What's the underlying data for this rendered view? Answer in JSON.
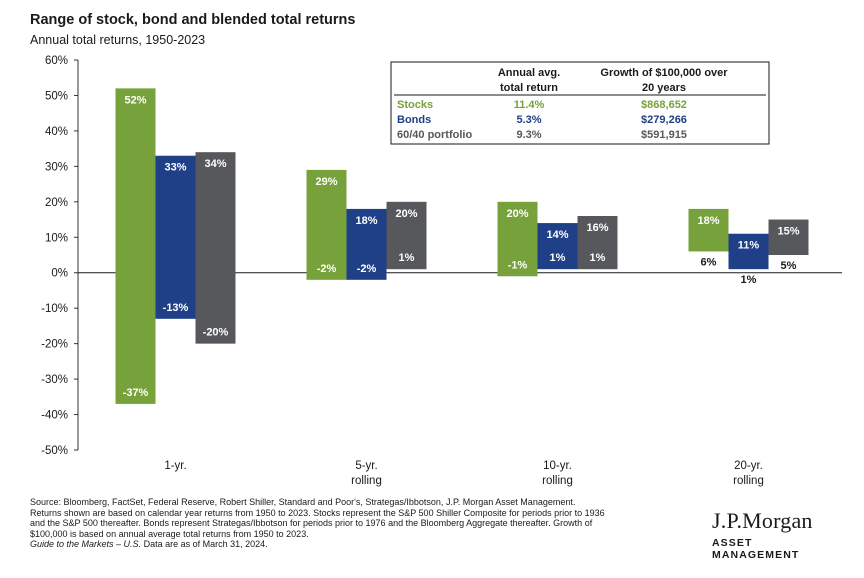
{
  "title": "Range of stock, bond and blended total returns",
  "subtitle": "Annual total returns, 1950-2023",
  "chart_data": {
    "type": "bar",
    "chart_style": "floating range bars",
    "categories": [
      {
        "line1": "1-yr.",
        "line2": ""
      },
      {
        "line1": "5-yr.",
        "line2": "rolling"
      },
      {
        "line1": "10-yr.",
        "line2": "rolling"
      },
      {
        "line1": "20-yr.",
        "line2": "rolling"
      }
    ],
    "series": [
      {
        "name": "Stocks",
        "color": "#76a13b",
        "max": [
          52,
          29,
          20,
          18
        ],
        "min": [
          -37,
          -2,
          -1,
          6
        ],
        "max_labels": [
          "52%",
          "29%",
          "20%",
          "18%"
        ],
        "min_labels": [
          "-37%",
          "-2%",
          "-1%",
          "6%"
        ]
      },
      {
        "name": "Bonds",
        "color": "#1f3f87",
        "max": [
          33,
          18,
          14,
          11
        ],
        "min": [
          -13,
          -2,
          1,
          1
        ],
        "max_labels": [
          "33%",
          "18%",
          "14%",
          "11%"
        ],
        "min_labels": [
          "-13%",
          "-2%",
          "1%",
          "1%"
        ]
      },
      {
        "name": "60/40 portfolio",
        "color": "#56585b",
        "max": [
          34,
          20,
          16,
          15
        ],
        "min": [
          -20,
          1,
          1,
          5
        ],
        "max_labels": [
          "34%",
          "20%",
          "16%",
          "15%"
        ],
        "min_labels": [
          "-20%",
          "1%",
          "1%",
          "5%"
        ]
      }
    ],
    "ylim": [
      -50,
      60
    ],
    "yticks": [
      60,
      50,
      40,
      30,
      20,
      10,
      0,
      -10,
      -20,
      -30,
      -40,
      -50
    ],
    "ytick_labels": [
      "60%",
      "50%",
      "40%",
      "30%",
      "20%",
      "10%",
      "0%",
      "-10%",
      "-20%",
      "-30%",
      "-40%",
      "-50%"
    ],
    "grid": false,
    "legend_placement": "top-right",
    "table": {
      "headers": [
        {
          "line1": "",
          "line2": ""
        },
        {
          "line1": "Annual avg.",
          "line2": "total return"
        },
        {
          "line1": "Growth of $100,000 over",
          "line2": "20 years"
        }
      ],
      "rows": [
        {
          "label": "Stocks",
          "avg": "11.4%",
          "growth": "$868,652",
          "color": "#76a13b"
        },
        {
          "label": "Bonds",
          "avg": "5.3%",
          "growth": "$279,266",
          "color": "#1f3f87"
        },
        {
          "label": "60/40 portfolio",
          "avg": "9.3%",
          "growth": "$591,915",
          "color": "#56585b"
        }
      ]
    }
  },
  "footer": {
    "lines": [
      "Source: Bloomberg, FactSet, Federal Reserve, Robert Shiller, Standard and Poor's, Strategas/Ibbotson, J.P. Morgan Asset Management.",
      "Returns shown are based on calendar year returns from 1950 to 2023. Stocks represent the S&P 500 Shiller Composite for periods prior to 1936",
      "and the S&P 500 thereafter. Bonds represent Strategas/Ibbotson for periods prior to 1976 and the Bloomberg Aggregate thereafter. Growth of",
      "$100,000 is based on annual average total returns from 1950 to 2023."
    ],
    "italic_part": "Guide to the Markets – U.S.",
    "last_line_rest": " Data are as of March 31, 2024."
  },
  "logo": {
    "name": "J.P.Morgan",
    "sub": "ASSET MANAGEMENT"
  }
}
